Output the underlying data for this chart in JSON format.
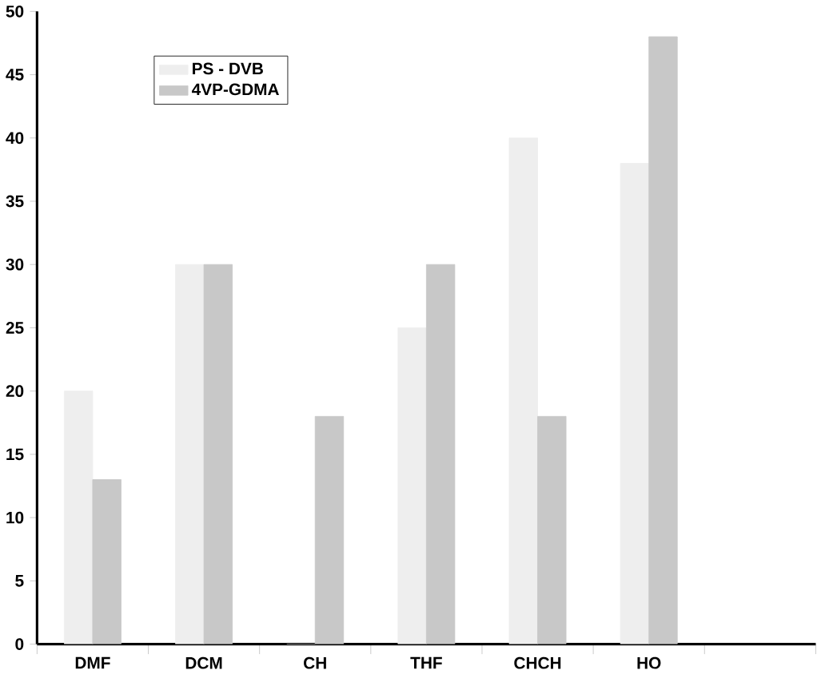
{
  "chart_data": {
    "type": "bar",
    "categories": [
      "DMF",
      "DCM",
      "CH",
      "THF",
      "CHCH",
      "HO",
      null
    ],
    "series": [
      {
        "name": "PS - DVB",
        "color": "#eeeeee",
        "values": [
          20,
          30,
          0,
          25,
          40,
          38,
          null
        ]
      },
      {
        "name": "4VP-GDMA",
        "color": "#c8c8c8",
        "values": [
          13,
          30,
          18,
          30,
          18,
          48,
          null
        ]
      }
    ],
    "ylim": [
      0,
      50
    ],
    "yticks": [
      0,
      5,
      10,
      15,
      20,
      25,
      30,
      35,
      40,
      45,
      50
    ],
    "legend": "top left",
    "grid": false
  }
}
